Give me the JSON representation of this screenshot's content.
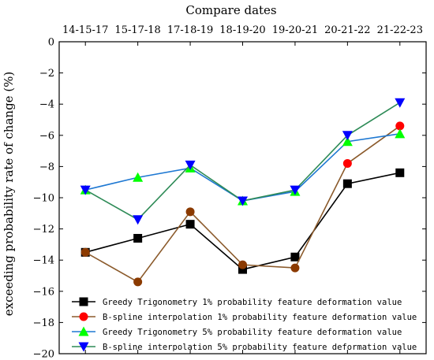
{
  "chart_data": {
    "type": "line",
    "title": "",
    "xlabel": "Compare dates",
    "xlabel_position": "top",
    "ylabel": "exceeding probability rate of change (%)",
    "categories": [
      "14-15-17",
      "15-17-18",
      "17-18-19",
      "18-19-20",
      "19-20-21",
      "20-21-22",
      "21-22-23"
    ],
    "ylim": [
      -20,
      0
    ],
    "yticks": [
      0,
      -2,
      -4,
      -6,
      -8,
      -10,
      -12,
      -14,
      -16,
      -18,
      -20
    ],
    "grid": false,
    "legend_position": "bottom-right",
    "series": [
      {
        "name": "Greedy Trigonometry 1% probability feature deformation value",
        "values": [
          -13.5,
          -12.6,
          -11.7,
          -14.6,
          -13.8,
          -9.1,
          -8.4
        ],
        "line_color": "#000000",
        "marker_color": "#000000",
        "marker": "square"
      },
      {
        "name": "B-spline interpolation 1% probability feature deformation value",
        "values": [
          -13.5,
          -15.4,
          -10.9,
          -14.3,
          -14.5,
          -7.8,
          -5.4
        ],
        "line_color": "#8B5A2B",
        "marker_color": "#8B3A00",
        "marker_color_alt": "#FF0000",
        "marker": "circle"
      },
      {
        "name": "Greedy Trigonometry 5% probability feature deformation value",
        "values": [
          -9.5,
          -8.7,
          -8.1,
          -10.2,
          -9.6,
          -6.4,
          -5.9
        ],
        "line_color": "#1E78D2",
        "marker_color": "#00FF00",
        "marker": "triangle-up"
      },
      {
        "name": "B-spline interpolation 5% probability feature deformation value",
        "values": [
          -9.5,
          -11.4,
          -7.9,
          -10.2,
          -9.5,
          -6.0,
          -3.9
        ],
        "line_color": "#2E8B57",
        "marker_color": "#0000FF",
        "marker": "triangle-down"
      }
    ]
  }
}
